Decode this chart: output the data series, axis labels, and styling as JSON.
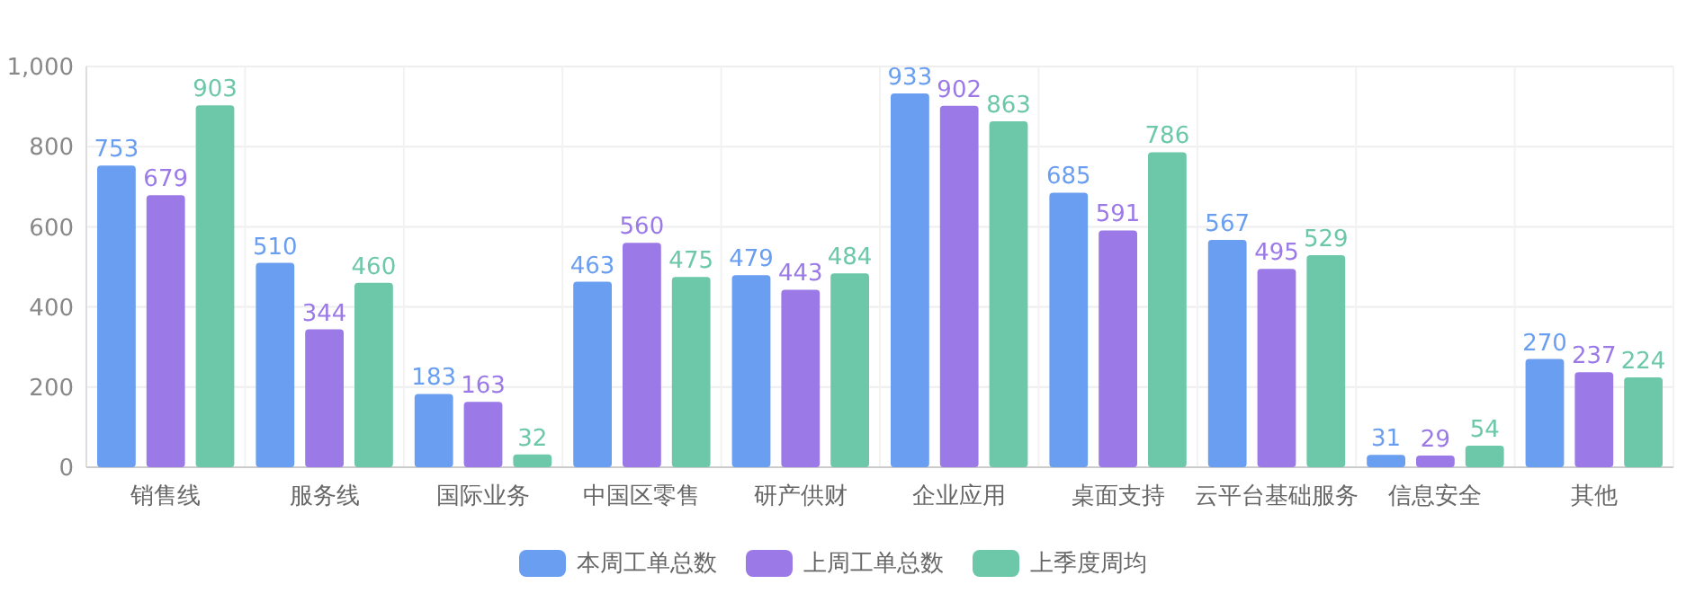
{
  "chart_data": {
    "type": "bar",
    "categories": [
      "销售线",
      "服务线",
      "国际业务",
      "中国区零售",
      "研产供财",
      "企业应用",
      "桌面支持",
      "云平台基础服务",
      "信息安全",
      "其他"
    ],
    "series": [
      {
        "name": "本周工单总数",
        "color": "#6a9ef0",
        "values": [
          753,
          510,
          183,
          463,
          479,
          933,
          685,
          567,
          31,
          270
        ]
      },
      {
        "name": "上周工单总数",
        "color": "#9b7ae8",
        "values": [
          679,
          344,
          163,
          560,
          443,
          902,
          591,
          495,
          29,
          237
        ]
      },
      {
        "name": "上季度周均",
        "color": "#6cc8a8",
        "values": [
          903,
          460,
          32,
          475,
          484,
          863,
          786,
          529,
          54,
          224
        ]
      }
    ],
    "ylim": [
      0,
      1000
    ],
    "yticks": [
      0,
      200,
      400,
      600,
      800,
      {
        "value": 1000,
        "label": "1,000"
      }
    ],
    "grid": true,
    "legend": "bottom",
    "data_labels": true
  }
}
